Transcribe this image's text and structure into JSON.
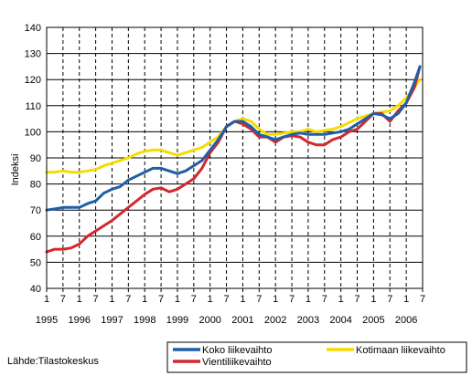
{
  "chart_data": {
    "type": "line",
    "title": "",
    "xlabel": "",
    "ylabel": "Indeksi",
    "ylim": [
      40,
      140
    ],
    "y_ticks": [
      40,
      50,
      60,
      70,
      80,
      90,
      100,
      110,
      120,
      130,
      140
    ],
    "x_range": [
      1995.0,
      2006.5
    ],
    "x_tick_labels": [
      {
        "x": 1995.0,
        "label": "1"
      },
      {
        "x": 1995.5,
        "label": "7"
      },
      {
        "x": 1996.0,
        "label": "1"
      },
      {
        "x": 1996.5,
        "label": "7"
      },
      {
        "x": 1997.0,
        "label": "1"
      },
      {
        "x": 1997.5,
        "label": "7"
      },
      {
        "x": 1998.0,
        "label": "1"
      },
      {
        "x": 1998.5,
        "label": "7"
      },
      {
        "x": 1999.0,
        "label": "1"
      },
      {
        "x": 1999.5,
        "label": "7"
      },
      {
        "x": 2000.0,
        "label": "1"
      },
      {
        "x": 2000.5,
        "label": "7"
      },
      {
        "x": 2001.0,
        "label": "1"
      },
      {
        "x": 2001.5,
        "label": "7"
      },
      {
        "x": 2002.0,
        "label": "1"
      },
      {
        "x": 2002.5,
        "label": "7"
      },
      {
        "x": 2003.0,
        "label": "1"
      },
      {
        "x": 2003.5,
        "label": "7"
      },
      {
        "x": 2004.0,
        "label": "1"
      },
      {
        "x": 2004.5,
        "label": "7"
      },
      {
        "x": 2005.0,
        "label": "1"
      },
      {
        "x": 2005.5,
        "label": "7"
      },
      {
        "x": 2006.0,
        "label": "1"
      },
      {
        "x": 2006.5,
        "label": "7"
      }
    ],
    "year_labels": [
      {
        "x": 1995.0,
        "label": "1995"
      },
      {
        "x": 1996.0,
        "label": "1996"
      },
      {
        "x": 1997.0,
        "label": "1997"
      },
      {
        "x": 1998.0,
        "label": "1998"
      },
      {
        "x": 1999.0,
        "label": "1999"
      },
      {
        "x": 2000.0,
        "label": "2000"
      },
      {
        "x": 2001.0,
        "label": "2001"
      },
      {
        "x": 2002.0,
        "label": "2002"
      },
      {
        "x": 2003.0,
        "label": "2003"
      },
      {
        "x": 2004.0,
        "label": "2004"
      },
      {
        "x": 2005.0,
        "label": "2005"
      },
      {
        "x": 2006.0,
        "label": "2006"
      }
    ],
    "grid": {
      "horizontal": "solid",
      "vertical": "dashed"
    },
    "legend_position": "bottom-right",
    "series": [
      {
        "name": "Koko liikevaihto",
        "color": "#1f5fa8",
        "points": [
          [
            1995.0,
            70
          ],
          [
            1995.25,
            70.5
          ],
          [
            1995.5,
            71
          ],
          [
            1995.75,
            71
          ],
          [
            1996.0,
            71
          ],
          [
            1996.25,
            72.5
          ],
          [
            1996.5,
            73.5
          ],
          [
            1996.75,
            76.5
          ],
          [
            1997.0,
            78
          ],
          [
            1997.25,
            79
          ],
          [
            1997.5,
            81.5
          ],
          [
            1997.75,
            83
          ],
          [
            1998.0,
            84.5
          ],
          [
            1998.25,
            86
          ],
          [
            1998.5,
            86
          ],
          [
            1998.75,
            85
          ],
          [
            1999.0,
            84
          ],
          [
            1999.25,
            85
          ],
          [
            1999.5,
            87
          ],
          [
            1999.75,
            89
          ],
          [
            2000.0,
            93
          ],
          [
            2000.25,
            97
          ],
          [
            2000.5,
            102
          ],
          [
            2000.75,
            104
          ],
          [
            2001.0,
            104
          ],
          [
            2001.25,
            102
          ],
          [
            2001.5,
            99
          ],
          [
            2001.75,
            98
          ],
          [
            2002.0,
            97
          ],
          [
            2002.25,
            98
          ],
          [
            2002.5,
            99
          ],
          [
            2002.75,
            99.5
          ],
          [
            2003.0,
            99
          ],
          [
            2003.25,
            99
          ],
          [
            2003.5,
            99
          ],
          [
            2003.75,
            99.5
          ],
          [
            2004.0,
            100
          ],
          [
            2004.25,
            101
          ],
          [
            2004.5,
            103
          ],
          [
            2004.75,
            105
          ],
          [
            2005.0,
            107
          ],
          [
            2005.25,
            106.5
          ],
          [
            2005.5,
            105
          ],
          [
            2005.75,
            107
          ],
          [
            2006.0,
            111
          ],
          [
            2006.25,
            119
          ],
          [
            2006.42,
            125
          ]
        ]
      },
      {
        "name": "Vientiliikevaihto",
        "color": "#d4282c",
        "points": [
          [
            1995.0,
            54
          ],
          [
            1995.25,
            55
          ],
          [
            1995.5,
            55
          ],
          [
            1995.75,
            55.5
          ],
          [
            1996.0,
            57
          ],
          [
            1996.25,
            60
          ],
          [
            1996.5,
            62
          ],
          [
            1996.75,
            64
          ],
          [
            1997.0,
            66
          ],
          [
            1997.25,
            68.5
          ],
          [
            1997.5,
            71
          ],
          [
            1997.75,
            73.5
          ],
          [
            1998.0,
            76
          ],
          [
            1998.25,
            78
          ],
          [
            1998.5,
            78.5
          ],
          [
            1998.75,
            77
          ],
          [
            1999.0,
            78
          ],
          [
            1999.25,
            80
          ],
          [
            1999.5,
            82
          ],
          [
            1999.75,
            86
          ],
          [
            2000.0,
            92
          ],
          [
            2000.25,
            96
          ],
          [
            2000.5,
            102
          ],
          [
            2000.75,
            104
          ],
          [
            2001.0,
            103
          ],
          [
            2001.25,
            101
          ],
          [
            2001.5,
            98
          ],
          [
            2001.75,
            98
          ],
          [
            2002.0,
            96
          ],
          [
            2002.25,
            98
          ],
          [
            2002.5,
            98.5
          ],
          [
            2002.75,
            98
          ],
          [
            2003.0,
            96
          ],
          [
            2003.25,
            95
          ],
          [
            2003.5,
            95
          ],
          [
            2003.75,
            97
          ],
          [
            2004.0,
            98
          ],
          [
            2004.25,
            100
          ],
          [
            2004.5,
            101
          ],
          [
            2004.75,
            104
          ],
          [
            2005.0,
            107
          ],
          [
            2005.25,
            107
          ],
          [
            2005.5,
            104
          ],
          [
            2005.75,
            108
          ],
          [
            2006.0,
            111
          ],
          [
            2006.25,
            117
          ],
          [
            2006.42,
            125
          ]
        ]
      },
      {
        "name": "Kotimaan liikevaihto",
        "color": "#f5dc00",
        "points": [
          [
            1995.0,
            84.5
          ],
          [
            1995.25,
            84.5
          ],
          [
            1995.5,
            85
          ],
          [
            1995.75,
            84.5
          ],
          [
            1996.0,
            84.5
          ],
          [
            1996.25,
            85
          ],
          [
            1996.5,
            85.5
          ],
          [
            1996.75,
            87
          ],
          [
            1997.0,
            88
          ],
          [
            1997.25,
            89
          ],
          [
            1997.5,
            90
          ],
          [
            1997.75,
            91.5
          ],
          [
            1998.0,
            92.5
          ],
          [
            1998.25,
            93
          ],
          [
            1998.5,
            93
          ],
          [
            1998.75,
            92
          ],
          [
            1999.0,
            91
          ],
          [
            1999.25,
            92
          ],
          [
            1999.5,
            93
          ],
          [
            1999.75,
            94
          ],
          [
            2000.0,
            96
          ],
          [
            2000.25,
            98
          ],
          [
            2000.5,
            102
          ],
          [
            2000.75,
            104
          ],
          [
            2001.0,
            105
          ],
          [
            2001.25,
            104
          ],
          [
            2001.5,
            101
          ],
          [
            2001.75,
            99
          ],
          [
            2002.0,
            99
          ],
          [
            2002.25,
            99.5
          ],
          [
            2002.5,
            100
          ],
          [
            2002.75,
            100
          ],
          [
            2003.0,
            101
          ],
          [
            2003.25,
            100
          ],
          [
            2003.5,
            100.5
          ],
          [
            2003.75,
            101
          ],
          [
            2004.0,
            102
          ],
          [
            2004.25,
            103.5
          ],
          [
            2004.5,
            105
          ],
          [
            2004.75,
            106
          ],
          [
            2005.0,
            107
          ],
          [
            2005.25,
            107.5
          ],
          [
            2005.5,
            108
          ],
          [
            2005.75,
            110
          ],
          [
            2006.0,
            113
          ],
          [
            2006.25,
            117
          ],
          [
            2006.42,
            120
          ]
        ]
      }
    ],
    "legend_order": [
      "Koko liikevaihto",
      "Kotimaan liikevaihto",
      "Vientiliikevaihto"
    ],
    "source": "Lähde:Tilastokeskus"
  }
}
